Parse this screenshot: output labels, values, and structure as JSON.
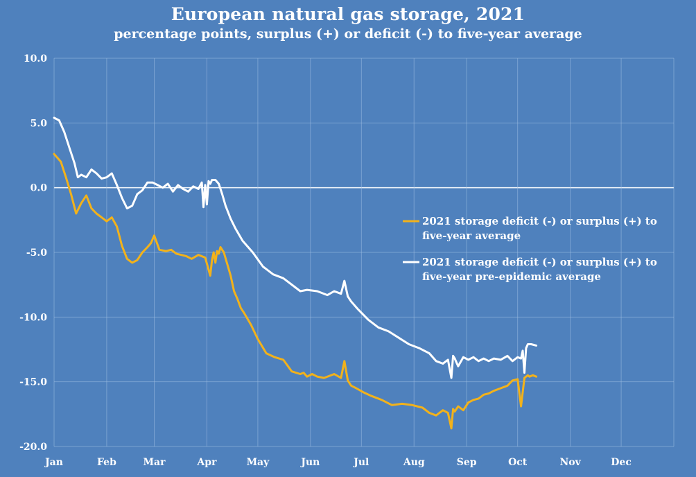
{
  "chart_data": {
    "type": "line",
    "title": "European natural gas storage, 2021",
    "subtitle": "percentage points, surplus (+) or deficit (-) to five-year average",
    "xlabel": "",
    "ylabel": "",
    "ylim": [
      -20,
      10
    ],
    "yticks": [
      10,
      5,
      0,
      -5,
      -10,
      -15,
      -20
    ],
    "ytick_labels": [
      "10.0",
      "5.0",
      "0.0",
      "-5.0",
      "-10.0",
      "-15.0",
      "-20.0"
    ],
    "xlim": [
      1,
      366
    ],
    "month_labels": [
      "Jan",
      "Feb",
      "Mar",
      "Apr",
      "May",
      "Jun",
      "Jul",
      "Aug",
      "Sep",
      "Oct",
      "Nov",
      "Dec"
    ],
    "month_days": [
      1,
      32,
      60,
      91,
      121,
      152,
      182,
      213,
      244,
      274,
      305,
      335
    ],
    "grid": true,
    "legend_position": "right-middle",
    "series": [
      {
        "name": "2021 storage deficit (-) or surplus (+) to five-year average",
        "legend_lines": [
          "2021 storage deficit (-) or surplus (+) to",
          "five-year average"
        ],
        "color": "#f2b21b",
        "x": [
          1,
          5,
          8,
          11,
          14,
          17,
          20,
          23,
          26,
          29,
          32,
          35,
          38,
          41,
          44,
          47,
          50,
          53,
          56,
          58,
          60,
          63,
          67,
          70,
          73,
          76,
          79,
          82,
          86,
          90,
          93,
          94,
          95,
          96,
          97,
          98,
          99,
          101,
          103,
          105,
          107,
          109,
          111,
          113,
          117,
          121,
          126,
          131,
          136,
          141,
          146,
          148,
          150,
          153,
          156,
          160,
          166,
          170,
          172,
          174,
          176,
          179,
          183,
          188,
          194,
          200,
          206,
          212,
          218,
          222,
          226,
          230,
          233,
          235,
          236,
          237,
          239,
          242,
          245,
          248,
          251,
          254,
          257,
          260,
          264,
          268,
          271,
          274,
          276,
          278,
          279,
          280,
          281,
          283,
          285
        ],
        "y": [
          2.6,
          2.0,
          0.8,
          -0.5,
          -2.0,
          -1.2,
          -0.6,
          -1.6,
          -2.0,
          -2.3,
          -2.6,
          -2.3,
          -3.0,
          -4.5,
          -5.5,
          -5.8,
          -5.6,
          -5.0,
          -4.6,
          -4.3,
          -3.7,
          -4.8,
          -4.9,
          -4.8,
          -5.1,
          -5.2,
          -5.3,
          -5.5,
          -5.2,
          -5.4,
          -6.8,
          -5.6,
          -5.0,
          -5.8,
          -4.9,
          -5.1,
          -4.6,
          -5.0,
          -5.9,
          -6.8,
          -8.0,
          -8.6,
          -9.3,
          -9.7,
          -10.6,
          -11.7,
          -12.8,
          -13.1,
          -13.3,
          -14.2,
          -14.4,
          -14.3,
          -14.6,
          -14.4,
          -14.6,
          -14.7,
          -14.4,
          -14.7,
          -13.4,
          -14.9,
          -15.3,
          -15.5,
          -15.8,
          -16.1,
          -16.4,
          -16.8,
          -16.7,
          -16.8,
          -17.0,
          -17.4,
          -17.6,
          -17.2,
          -17.4,
          -18.6,
          -17.1,
          -17.3,
          -16.9,
          -17.2,
          -16.6,
          -16.4,
          -16.3,
          -16.0,
          -15.9,
          -15.7,
          -15.5,
          -15.3,
          -14.9,
          -14.8,
          -16.9,
          -14.7,
          -14.6,
          -14.5,
          -14.6,
          -14.5,
          -14.6
        ]
      },
      {
        "name": "2021 storage deficit (-) or surplus (+) to five-year pre-epidemic average",
        "legend_lines": [
          "2021 storage deficit (-) or surplus (+) to",
          "five-year pre-epidemic average"
        ],
        "color": "#ffffff",
        "x": [
          1,
          4,
          7,
          10,
          13,
          15,
          17,
          20,
          23,
          26,
          29,
          32,
          35,
          38,
          41,
          44,
          47,
          50,
          53,
          56,
          59,
          62,
          65,
          68,
          71,
          74,
          77,
          80,
          83,
          86,
          88,
          89,
          90,
          91,
          92,
          93,
          94,
          96,
          98,
          100,
          102,
          105,
          108,
          112,
          118,
          124,
          130,
          136,
          142,
          146,
          150,
          156,
          162,
          166,
          170,
          172,
          174,
          176,
          180,
          186,
          192,
          198,
          204,
          210,
          216,
          222,
          226,
          230,
          233,
          235,
          236,
          237,
          239,
          242,
          245,
          248,
          251,
          254,
          257,
          260,
          264,
          268,
          271,
          274,
          276,
          277,
          278,
          279,
          280,
          282,
          285
        ],
        "y": [
          5.4,
          5.2,
          4.3,
          3.1,
          1.9,
          0.8,
          1.0,
          0.8,
          1.4,
          1.1,
          0.7,
          0.8,
          1.1,
          0.2,
          -0.8,
          -1.6,
          -1.4,
          -0.5,
          -0.2,
          0.4,
          0.4,
          0.2,
          0.0,
          0.3,
          -0.3,
          0.2,
          -0.1,
          -0.3,
          0.1,
          -0.1,
          0.4,
          -1.5,
          0.2,
          -1.3,
          0.5,
          0.3,
          0.6,
          0.6,
          0.3,
          -0.5,
          -1.4,
          -2.4,
          -3.2,
          -4.1,
          -5.0,
          -6.1,
          -6.7,
          -7.0,
          -7.6,
          -8.0,
          -7.9,
          -8.0,
          -8.3,
          -8.0,
          -8.2,
          -7.2,
          -8.4,
          -8.8,
          -9.4,
          -10.2,
          -10.8,
          -11.1,
          -11.6,
          -12.1,
          -12.4,
          -12.8,
          -13.4,
          -13.6,
          -13.3,
          -14.7,
          -13.0,
          -13.2,
          -13.8,
          -13.1,
          -13.3,
          -13.1,
          -13.4,
          -13.2,
          -13.4,
          -13.2,
          -13.3,
          -13.0,
          -13.4,
          -13.1,
          -13.2,
          -12.6,
          -14.3,
          -12.4,
          -12.1,
          -12.1,
          -12.2
        ]
      }
    ]
  }
}
